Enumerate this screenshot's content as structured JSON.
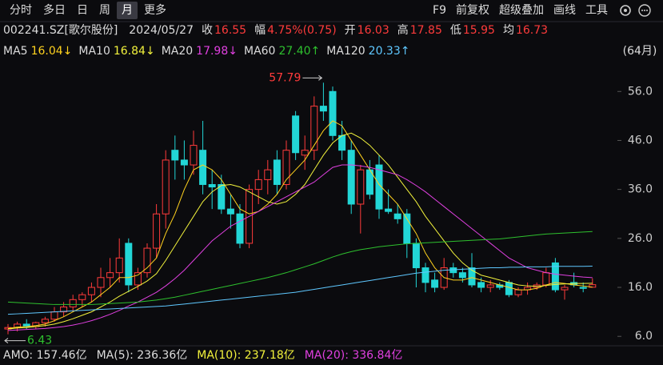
{
  "toolbar": {
    "tabs": [
      "分时",
      "多日",
      "日",
      "周",
      "月",
      "更多"
    ],
    "active": 4,
    "tools": [
      "F9",
      "前复权",
      "超级叠加",
      "画线",
      "工具"
    ]
  },
  "info": {
    "code": "002241.SZ[歌尔股份]",
    "date": "2024/05/27",
    "fields": [
      {
        "label": "收",
        "value": "16.55"
      },
      {
        "label": "幅",
        "value": "4.75%(0.75)"
      },
      {
        "label": "开",
        "value": "16.03"
      },
      {
        "label": "高",
        "value": "17.85"
      },
      {
        "label": "低",
        "value": "15.95"
      },
      {
        "label": "均",
        "value": "16.73"
      }
    ]
  },
  "period": "(64月)",
  "chart_data": {
    "type": "candlestick",
    "up_color": "#ff3b3b",
    "down_color": "#22d6d6",
    "open": [
      7.5,
      7.8,
      8.5,
      8,
      8.8,
      9.5,
      11,
      12,
      13.5,
      14.5,
      16,
      18,
      19,
      25,
      16.5,
      19,
      24,
      31,
      44,
      42,
      41,
      44,
      37,
      37,
      32,
      31,
      25,
      36,
      38,
      42,
      37,
      51,
      43,
      44,
      53,
      56,
      47,
      44,
      33,
      40,
      41,
      32,
      31,
      31,
      25,
      20,
      17.5,
      16,
      20,
      19,
      20,
      17,
      16,
      16.5,
      17,
      14.5,
      15.5,
      16,
      16.5,
      21,
      15.5,
      17,
      16,
      16.03
    ],
    "high": [
      8.5,
      9,
      9.5,
      9,
      10,
      12,
      13,
      14.5,
      15,
      17,
      20,
      22,
      26,
      26,
      20,
      25,
      33,
      44,
      47,
      46,
      48,
      50,
      40,
      39,
      35,
      33,
      37,
      40,
      42,
      44,
      46,
      52,
      47,
      55,
      57.79,
      57,
      50,
      46,
      41,
      42,
      43,
      36,
      33,
      32,
      26,
      21,
      19,
      22,
      21,
      20,
      23,
      18,
      17.5,
      17,
      17.5,
      16,
      17,
      17,
      20,
      22,
      16.5,
      19,
      17,
      17.85
    ],
    "low": [
      6.43,
      7,
      7.5,
      7.5,
      8,
      9,
      10,
      11,
      12,
      13,
      14,
      16,
      17,
      15,
      15.5,
      18,
      22,
      28,
      38,
      38,
      39,
      35,
      32,
      31,
      28,
      24,
      24,
      33,
      35,
      35,
      36,
      42,
      40,
      42,
      50,
      46,
      42,
      31,
      27,
      34,
      30,
      31,
      29,
      22,
      16,
      15,
      15,
      15.5,
      18,
      17,
      16,
      15,
      15,
      15.5,
      14,
      14,
      14.5,
      15.5,
      16,
      15,
      13.5,
      16,
      15,
      15.95
    ],
    "close": [
      7.8,
      8.5,
      8,
      8.8,
      9.5,
      11,
      12,
      13.5,
      14.5,
      16,
      18,
      19,
      22,
      16.5,
      19,
      24,
      31,
      42,
      42,
      41,
      45,
      37,
      36.5,
      32,
      31,
      25,
      36,
      38,
      40,
      37,
      44,
      43.5,
      44,
      53,
      52,
      47,
      44,
      33,
      40,
      35,
      32,
      31.5,
      30,
      25,
      20,
      17,
      16,
      20,
      19,
      18,
      16.5,
      16,
      16.5,
      16,
      14.5,
      15.5,
      16,
      16.5,
      19,
      15.5,
      16,
      16.5,
      15.8,
      16.55
    ],
    "series": [
      {
        "name": "MA5",
        "legend_value": "16.04↓",
        "color": "#ffd21e",
        "values": [
          7.6,
          7.9,
          8.0,
          8.2,
          8.5,
          9.2,
          10.0,
          11.0,
          12.0,
          13.0,
          14.5,
          16.0,
          18.0,
          18.0,
          18.5,
          20.0,
          22.0,
          27.0,
          31.0,
          36.0,
          40.0,
          41.0,
          40.0,
          38.0,
          35.0,
          32.0,
          31.0,
          31.5,
          33.0,
          35.0,
          38.0,
          40.0,
          42.0,
          45.0,
          48.0,
          50.0,
          49.0,
          46.0,
          43.0,
          40.0,
          37.0,
          35.0,
          33.0,
          30.0,
          27.0,
          23.0,
          20.0,
          18.0,
          17.5,
          17.5,
          18.0,
          17.5,
          17.0,
          16.5,
          16.0,
          15.5,
          15.5,
          15.8,
          16.5,
          17.0,
          16.8,
          16.5,
          16.3,
          16.04
        ]
      },
      {
        "name": "MA10",
        "legend_value": "16.84↓",
        "color": "#f2f23c",
        "values": [
          7.5,
          7.7,
          7.8,
          8.0,
          8.2,
          8.5,
          9.0,
          9.6,
          10.3,
          11.0,
          12.0,
          13.0,
          14.2,
          15.2,
          16.2,
          17.3,
          18.8,
          21.5,
          24.5,
          27.5,
          30.5,
          33.5,
          35.5,
          36.8,
          37.0,
          36.5,
          35.5,
          34.5,
          33.5,
          33.0,
          33.5,
          35.0,
          37.0,
          40.0,
          43.0,
          45.5,
          47.0,
          47.5,
          46.5,
          45.0,
          43.0,
          41.0,
          38.5,
          36.0,
          33.5,
          30.5,
          28.0,
          25.5,
          23.0,
          21.0,
          19.5,
          18.5,
          18.0,
          17.5,
          17.0,
          16.5,
          16.3,
          16.2,
          16.4,
          16.6,
          16.7,
          16.8,
          16.8,
          16.84
        ]
      },
      {
        "name": "MA20",
        "legend_value": "17.98↓",
        "color": "#e040e0",
        "values": [
          7.2,
          7.3,
          7.4,
          7.5,
          7.6,
          7.8,
          8.0,
          8.3,
          8.7,
          9.2,
          9.8,
          10.5,
          11.3,
          12.2,
          13.0,
          14.0,
          15.0,
          16.3,
          17.8,
          19.5,
          21.5,
          23.5,
          25.5,
          27.0,
          28.5,
          29.5,
          30.5,
          31.5,
          32.5,
          33.5,
          34.5,
          35.5,
          36.5,
          37.5,
          39.0,
          40.5,
          41.0,
          41.0,
          40.8,
          40.5,
          40.0,
          39.5,
          39.0,
          38.0,
          36.8,
          35.5,
          34.0,
          32.5,
          31.0,
          29.5,
          28.0,
          26.5,
          25.0,
          23.5,
          22.0,
          21.0,
          20.0,
          19.5,
          19.0,
          18.7,
          18.5,
          18.3,
          18.1,
          17.98
        ]
      },
      {
        "name": "MA60",
        "legend_value": "27.40↑",
        "color": "#2ec02e",
        "values": [
          13.0,
          12.9,
          12.8,
          12.7,
          12.6,
          12.5,
          12.5,
          12.5,
          12.5,
          12.5,
          12.6,
          12.7,
          12.8,
          12.9,
          13.0,
          13.2,
          13.4,
          13.7,
          14.0,
          14.4,
          14.8,
          15.2,
          15.6,
          16.0,
          16.4,
          16.8,
          17.2,
          17.6,
          18.0,
          18.5,
          19.0,
          19.6,
          20.2,
          20.8,
          21.5,
          22.2,
          22.8,
          23.3,
          23.7,
          24.0,
          24.3,
          24.5,
          24.7,
          24.9,
          25.0,
          25.1,
          25.2,
          25.3,
          25.4,
          25.5,
          25.6,
          25.7,
          25.8,
          25.9,
          26.1,
          26.3,
          26.5,
          26.7,
          26.9,
          27.0,
          27.1,
          27.2,
          27.3,
          27.4
        ]
      },
      {
        "name": "MA120",
        "legend_value": "20.33↑",
        "color": "#5fc8ff",
        "values": [
          10.5,
          10.6,
          10.7,
          10.8,
          10.9,
          11.0,
          11.1,
          11.2,
          11.3,
          11.4,
          11.5,
          11.6,
          11.7,
          11.8,
          11.9,
          12.0,
          12.1,
          12.2,
          12.4,
          12.6,
          12.8,
          13.0,
          13.2,
          13.4,
          13.6,
          13.8,
          14.0,
          14.2,
          14.4,
          14.6,
          14.8,
          15.0,
          15.3,
          15.6,
          15.9,
          16.2,
          16.5,
          16.8,
          17.1,
          17.4,
          17.7,
          18.0,
          18.3,
          18.6,
          18.9,
          19.1,
          19.3,
          19.5,
          19.6,
          19.7,
          19.8,
          19.9,
          20.0,
          20.0,
          20.1,
          20.1,
          20.2,
          20.2,
          20.2,
          20.3,
          20.3,
          20.3,
          20.3,
          20.33
        ]
      }
    ],
    "ylim": [
      4.4,
      61.6
    ],
    "yticks": [
      {
        "value": 6,
        "label": "6.0"
      },
      {
        "value": 16,
        "label": "16.0"
      },
      {
        "value": 26,
        "label": "26.0"
      },
      {
        "value": 36,
        "label": "36.0"
      },
      {
        "value": 46,
        "label": "46.0"
      },
      {
        "value": 56,
        "label": "56.0"
      }
    ],
    "max_label": "57.79",
    "min_label": "6.43"
  },
  "footer": [
    {
      "label": "AMO: 157.46亿",
      "color": "#dddddd"
    },
    {
      "label": "MA(5): 236.36亿",
      "color": "#dddddd"
    },
    {
      "label": "MA(10): 237.18亿",
      "color": "#f2f23c"
    },
    {
      "label": "MA(20): 336.84亿",
      "color": "#e040e0"
    }
  ]
}
